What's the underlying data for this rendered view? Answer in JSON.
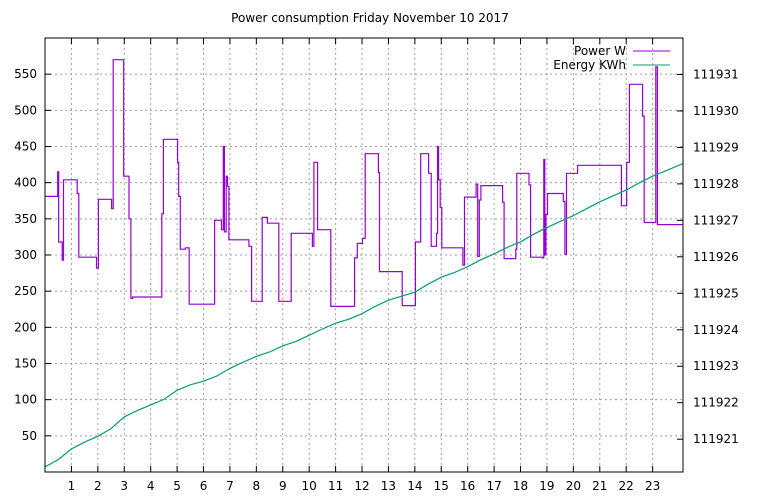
{
  "chart_data": {
    "type": "line",
    "title": "Power consumption Friday November 10 2017",
    "xlabel": "",
    "ylabel": "",
    "xlim": [
      0,
      24.15
    ],
    "ylim": [
      0,
      600
    ],
    "y2lim": [
      111920.1,
      111932.0
    ],
    "grid": true,
    "legend_position": "top-right",
    "x_ticks": [
      "1",
      "2",
      "3",
      "4",
      "5",
      "6",
      "7",
      "8",
      "9",
      "10",
      "11",
      "12",
      "13",
      "14",
      "15",
      "16",
      "17",
      "18",
      "19",
      "20",
      "21",
      "22",
      "23"
    ],
    "y_ticks": [
      "50",
      "100",
      "150",
      "200",
      "250",
      "300",
      "350",
      "400",
      "450",
      "500",
      "550"
    ],
    "y2_ticks": [
      "111921",
      "111922",
      "111923",
      "111924",
      "111925",
      "111926",
      "111927",
      "111928",
      "111929",
      "111930",
      "111931"
    ],
    "series": [
      {
        "name": "Power W",
        "color": "#9400d3",
        "axis": "left",
        "points": [
          [
            0.0,
            381
          ],
          [
            0.48,
            381
          ],
          [
            0.48,
            415
          ],
          [
            0.52,
            415
          ],
          [
            0.52,
            318
          ],
          [
            0.65,
            318
          ],
          [
            0.65,
            293
          ],
          [
            0.7,
            293
          ],
          [
            0.7,
            404
          ],
          [
            1.22,
            404
          ],
          [
            1.22,
            385
          ],
          [
            1.28,
            385
          ],
          [
            1.28,
            297
          ],
          [
            1.95,
            297
          ],
          [
            1.95,
            282
          ],
          [
            2.02,
            282
          ],
          [
            2.02,
            377
          ],
          [
            2.52,
            377
          ],
          [
            2.52,
            364
          ],
          [
            2.58,
            364
          ],
          [
            2.58,
            570
          ],
          [
            2.98,
            570
          ],
          [
            2.98,
            409
          ],
          [
            3.18,
            409
          ],
          [
            3.18,
            350
          ],
          [
            3.25,
            350
          ],
          [
            3.25,
            240
          ],
          [
            3.32,
            240
          ],
          [
            3.32,
            242
          ],
          [
            4.42,
            242
          ],
          [
            4.42,
            357
          ],
          [
            4.48,
            357
          ],
          [
            4.48,
            460
          ],
          [
            5.02,
            460
          ],
          [
            5.02,
            428
          ],
          [
            5.06,
            428
          ],
          [
            5.06,
            381
          ],
          [
            5.12,
            381
          ],
          [
            5.12,
            308
          ],
          [
            5.32,
            308
          ],
          [
            5.32,
            310
          ],
          [
            5.46,
            310
          ],
          [
            5.46,
            232
          ],
          [
            6.42,
            232
          ],
          [
            6.42,
            348
          ],
          [
            6.68,
            348
          ],
          [
            6.68,
            335
          ],
          [
            6.75,
            335
          ],
          [
            6.75,
            450
          ],
          [
            6.79,
            450
          ],
          [
            6.79,
            332
          ],
          [
            6.86,
            332
          ],
          [
            6.86,
            409
          ],
          [
            6.91,
            409
          ],
          [
            6.91,
            395
          ],
          [
            6.96,
            395
          ],
          [
            6.96,
            321
          ],
          [
            7.72,
            321
          ],
          [
            7.72,
            312
          ],
          [
            7.82,
            312
          ],
          [
            7.82,
            236
          ],
          [
            8.22,
            236
          ],
          [
            8.22,
            352
          ],
          [
            8.42,
            352
          ],
          [
            8.42,
            344
          ],
          [
            8.85,
            344
          ],
          [
            8.85,
            236
          ],
          [
            9.32,
            236
          ],
          [
            9.32,
            330
          ],
          [
            10.12,
            330
          ],
          [
            10.12,
            312
          ],
          [
            10.18,
            312
          ],
          [
            10.18,
            428
          ],
          [
            10.32,
            428
          ],
          [
            10.32,
            335
          ],
          [
            10.82,
            335
          ],
          [
            10.82,
            229
          ],
          [
            11.72,
            229
          ],
          [
            11.72,
            296
          ],
          [
            11.82,
            296
          ],
          [
            11.82,
            316
          ],
          [
            12.02,
            316
          ],
          [
            12.02,
            323
          ],
          [
            12.12,
            323
          ],
          [
            12.12,
            440
          ],
          [
            12.62,
            440
          ],
          [
            12.62,
            414
          ],
          [
            12.66,
            414
          ],
          [
            12.66,
            277
          ],
          [
            13.52,
            277
          ],
          [
            13.52,
            230
          ],
          [
            14.02,
            230
          ],
          [
            14.02,
            318
          ],
          [
            14.22,
            318
          ],
          [
            14.22,
            440
          ],
          [
            14.52,
            440
          ],
          [
            14.52,
            413
          ],
          [
            14.62,
            413
          ],
          [
            14.62,
            312
          ],
          [
            14.82,
            312
          ],
          [
            14.82,
            330
          ],
          [
            14.86,
            330
          ],
          [
            14.86,
            450
          ],
          [
            14.9,
            450
          ],
          [
            14.9,
            404
          ],
          [
            14.96,
            404
          ],
          [
            14.96,
            366
          ],
          [
            15.02,
            366
          ],
          [
            15.02,
            310
          ],
          [
            15.82,
            310
          ],
          [
            15.82,
            286
          ],
          [
            15.88,
            286
          ],
          [
            15.88,
            380
          ],
          [
            16.32,
            380
          ],
          [
            16.32,
            398
          ],
          [
            16.38,
            398
          ],
          [
            16.38,
            298
          ],
          [
            16.44,
            298
          ],
          [
            16.44,
            376
          ],
          [
            16.5,
            376
          ],
          [
            16.5,
            396
          ],
          [
            17.32,
            396
          ],
          [
            17.32,
            373
          ],
          [
            17.38,
            373
          ],
          [
            17.38,
            295
          ],
          [
            17.82,
            295
          ],
          [
            17.82,
            308
          ],
          [
            17.86,
            308
          ],
          [
            17.86,
            413
          ],
          [
            18.32,
            413
          ],
          [
            18.32,
            397
          ],
          [
            18.38,
            397
          ],
          [
            18.38,
            297
          ],
          [
            18.82,
            297
          ],
          [
            18.82,
            296
          ],
          [
            18.88,
            296
          ],
          [
            18.88,
            432
          ],
          [
            18.92,
            432
          ],
          [
            18.92,
            300
          ],
          [
            18.96,
            300
          ],
          [
            18.96,
            356
          ],
          [
            19.02,
            356
          ],
          [
            19.02,
            385
          ],
          [
            19.62,
            385
          ],
          [
            19.62,
            374
          ],
          [
            19.68,
            374
          ],
          [
            19.68,
            301
          ],
          [
            19.74,
            301
          ],
          [
            19.74,
            413
          ],
          [
            20.16,
            413
          ],
          [
            20.16,
            424
          ],
          [
            21.82,
            424
          ],
          [
            21.82,
            368
          ],
          [
            22.02,
            368
          ],
          [
            22.02,
            428
          ],
          [
            22.12,
            428
          ],
          [
            22.12,
            536
          ],
          [
            22.62,
            536
          ],
          [
            22.62,
            492
          ],
          [
            22.68,
            492
          ],
          [
            22.68,
            345
          ],
          [
            23.12,
            345
          ],
          [
            23.12,
            560
          ],
          [
            23.18,
            560
          ],
          [
            23.18,
            342
          ],
          [
            24.15,
            342
          ]
        ]
      },
      {
        "name": "Energy KWh",
        "color": "#009e73",
        "axis": "right",
        "points": [
          [
            0.0,
            111920.24
          ],
          [
            0.5,
            111920.44
          ],
          [
            1.0,
            111920.73
          ],
          [
            1.5,
            111920.92
          ],
          [
            2.0,
            111921.08
          ],
          [
            2.5,
            111921.29
          ],
          [
            3.0,
            111921.61
          ],
          [
            3.5,
            111921.79
          ],
          [
            4.0,
            111921.94
          ],
          [
            4.5,
            111922.09
          ],
          [
            5.0,
            111922.34
          ],
          [
            5.5,
            111922.49
          ],
          [
            6.0,
            111922.59
          ],
          [
            6.5,
            111922.73
          ],
          [
            7.0,
            111922.94
          ],
          [
            7.5,
            111923.11
          ],
          [
            8.0,
            111923.27
          ],
          [
            8.5,
            111923.39
          ],
          [
            9.0,
            111923.56
          ],
          [
            9.5,
            111923.68
          ],
          [
            10.0,
            111923.85
          ],
          [
            10.5,
            111924.02
          ],
          [
            11.0,
            111924.18
          ],
          [
            11.5,
            111924.29
          ],
          [
            12.0,
            111924.44
          ],
          [
            12.5,
            111924.64
          ],
          [
            13.0,
            111924.81
          ],
          [
            13.5,
            111924.92
          ],
          [
            14.0,
            111925.03
          ],
          [
            14.5,
            111925.25
          ],
          [
            15.0,
            111925.44
          ],
          [
            15.5,
            111925.57
          ],
          [
            16.0,
            111925.73
          ],
          [
            16.5,
            111925.92
          ],
          [
            17.0,
            111926.08
          ],
          [
            17.5,
            111926.26
          ],
          [
            18.0,
            111926.41
          ],
          [
            18.5,
            111926.62
          ],
          [
            19.0,
            111926.8
          ],
          [
            19.5,
            111926.97
          ],
          [
            20.0,
            111927.13
          ],
          [
            20.5,
            111927.32
          ],
          [
            21.0,
            111927.51
          ],
          [
            21.5,
            111927.67
          ],
          [
            22.0,
            111927.83
          ],
          [
            22.5,
            111928.03
          ],
          [
            23.0,
            111928.21
          ],
          [
            23.5,
            111928.36
          ],
          [
            24.15,
            111928.56
          ]
        ]
      }
    ]
  }
}
